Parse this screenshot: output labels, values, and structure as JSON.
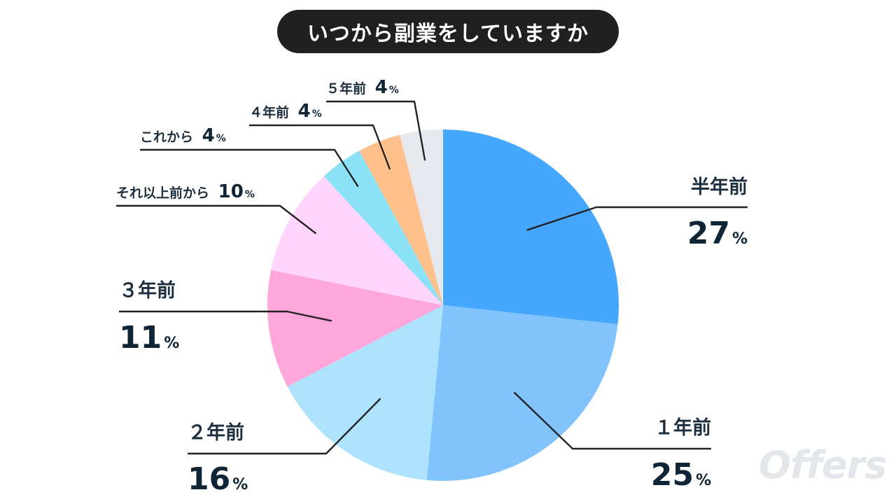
{
  "chart_data": {
    "type": "pie",
    "title": "いつから副業をしていますか",
    "unit": "%",
    "slices": [
      {
        "label": "半年前",
        "value": 27,
        "color": "#45a7fd"
      },
      {
        "label": "１年前",
        "value": 25,
        "color": "#80c3fd"
      },
      {
        "label": "２年前",
        "value": 16,
        "color": "#ade3fd"
      },
      {
        "label": "３年前",
        "value": 11,
        "color": "#ffa6da"
      },
      {
        "label": "それ以上前から",
        "value": 10,
        "color": "#ffd4fd"
      },
      {
        "label": "これから",
        "value": 4,
        "color": "#8be2f6"
      },
      {
        "label": "４年前",
        "value": 4,
        "color": "#ffc08b"
      },
      {
        "label": "５年前",
        "value": 4,
        "color": "#e5e8ec"
      }
    ]
  },
  "watermark": "Offers"
}
